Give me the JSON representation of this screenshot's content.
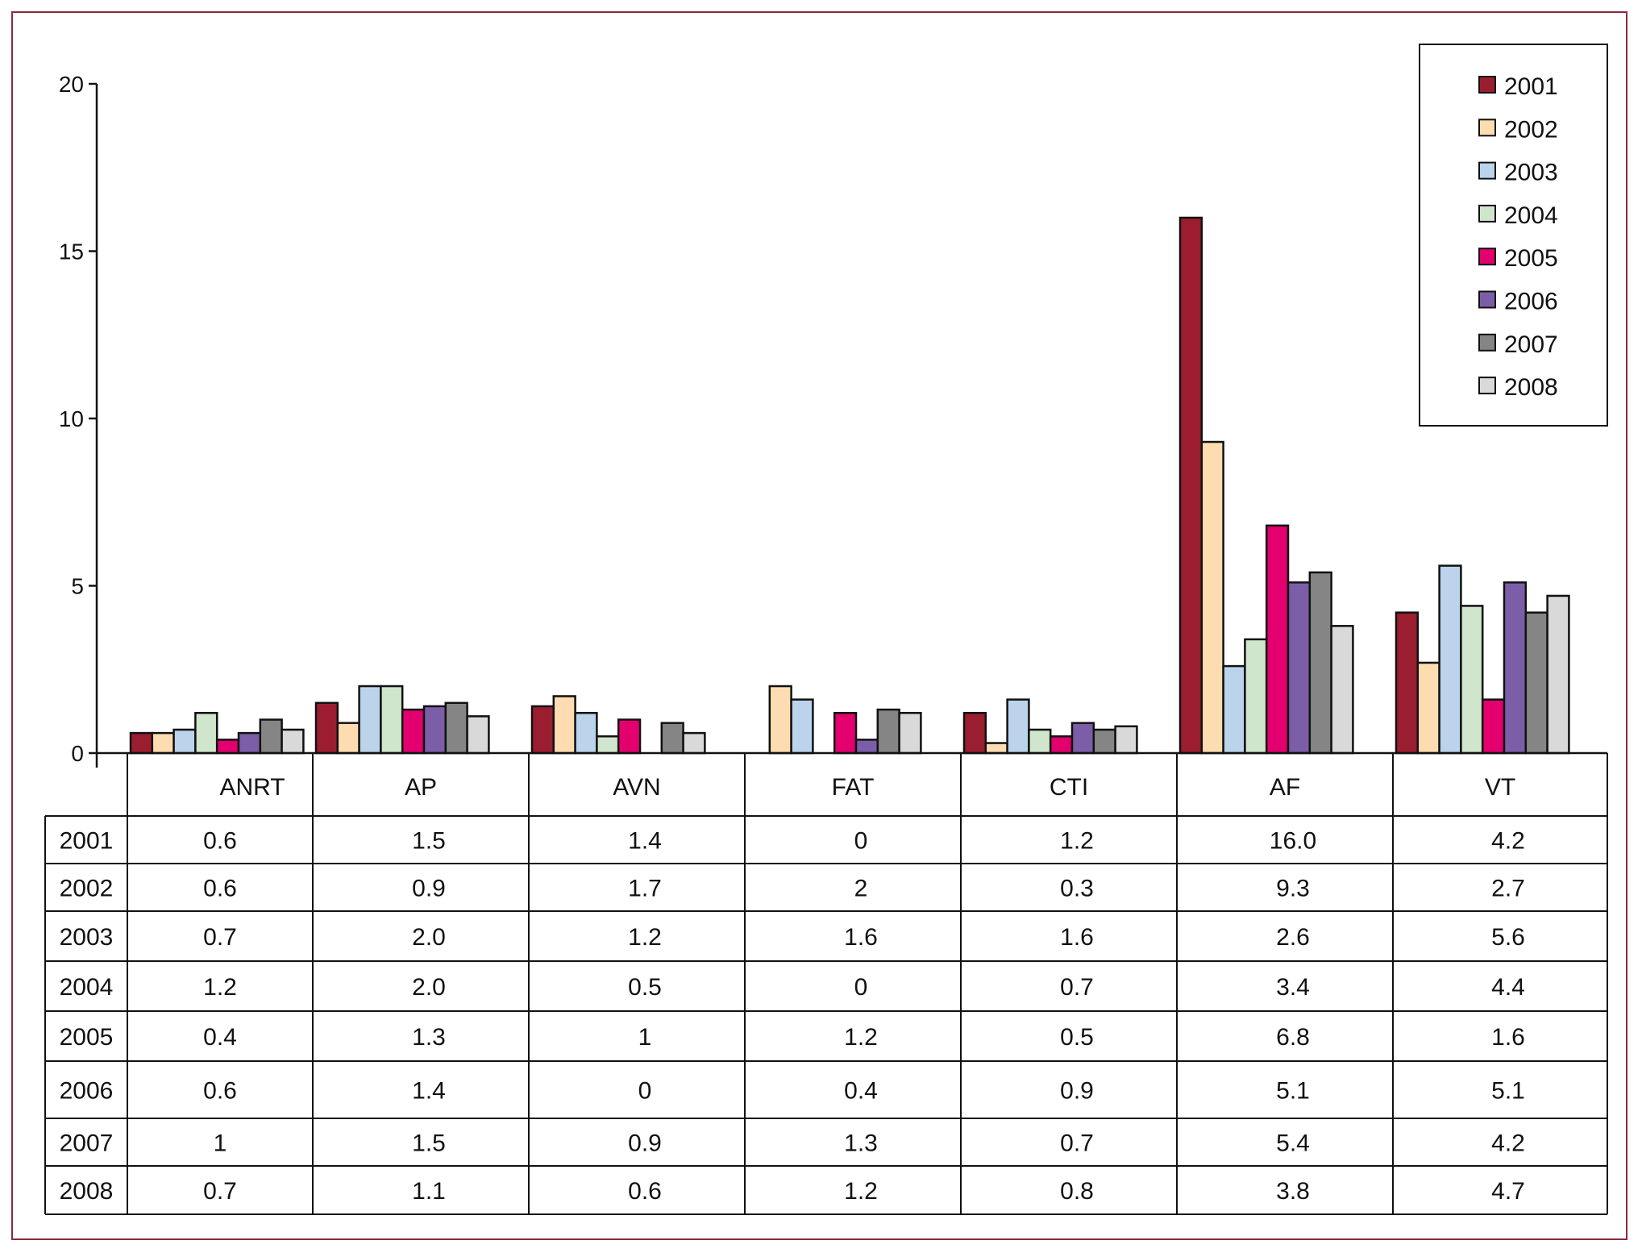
{
  "chart_data": {
    "type": "bar",
    "categories": [
      "ANRT",
      "AP",
      "AVN",
      "FAT",
      "CTI",
      "AF",
      "VT"
    ],
    "ylim": [
      0,
      20
    ],
    "yticks": [
      "0",
      "5",
      "10",
      "15",
      "20"
    ],
    "legend_position": "top-right",
    "grid": false,
    "series": [
      {
        "name": "2001",
        "color": "#9b1d30",
        "values": [
          0.6,
          1.5,
          1.4,
          0,
          1.2,
          16.0,
          4.2
        ],
        "labels": [
          "0.6",
          "1.5",
          "1.4",
          "0",
          "1.2",
          "16.0",
          "4.2"
        ]
      },
      {
        "name": "2002",
        "color": "#fcdcb0",
        "values": [
          0.6,
          0.9,
          1.7,
          2,
          0.3,
          9.3,
          2.7
        ],
        "labels": [
          "0.6",
          "0.9",
          "1.7",
          "2",
          "0.3",
          "9.3",
          "2.7"
        ]
      },
      {
        "name": "2003",
        "color": "#bcd3ec",
        "values": [
          0.7,
          2.0,
          1.2,
          1.6,
          1.6,
          2.6,
          5.6
        ],
        "labels": [
          "0.7",
          "2.0",
          "1.2",
          "1.6",
          "1.6",
          "2.6",
          "5.6"
        ]
      },
      {
        "name": "2004",
        "color": "#cfe6cc",
        "values": [
          1.2,
          2.0,
          0.5,
          0,
          0.7,
          3.4,
          4.4
        ],
        "labels": [
          "1.2",
          "2.0",
          "0.5",
          "0",
          "0.7",
          "3.4",
          "4.4"
        ]
      },
      {
        "name": "2005",
        "color": "#e3006e",
        "values": [
          0.4,
          1.3,
          1,
          1.2,
          0.5,
          6.8,
          1.6
        ],
        "labels": [
          "0.4",
          "1.3",
          "1",
          "1.2",
          "0.5",
          "6.8",
          "1.6"
        ]
      },
      {
        "name": "2006",
        "color": "#7b5ea7",
        "values": [
          0.6,
          1.4,
          0,
          0.4,
          0.9,
          5.1,
          5.1
        ],
        "labels": [
          "0.6",
          "1.4",
          "0",
          "0.4",
          "0.9",
          "5.1",
          "5.1"
        ]
      },
      {
        "name": "2007",
        "color": "#858585",
        "values": [
          1,
          1.5,
          0.9,
          1.3,
          0.7,
          5.4,
          4.2
        ],
        "labels": [
          "1",
          "1.5",
          "0.9",
          "1.3",
          "0.7",
          "5.4",
          "4.2"
        ]
      },
      {
        "name": "2008",
        "color": "#d9d9d9",
        "values": [
          0.7,
          1.1,
          0.6,
          1.2,
          0.8,
          3.8,
          4.7
        ],
        "labels": [
          "0.7",
          "1.1",
          "0.6",
          "1.2",
          "0.8",
          "3.8",
          "4.7"
        ]
      }
    ]
  }
}
